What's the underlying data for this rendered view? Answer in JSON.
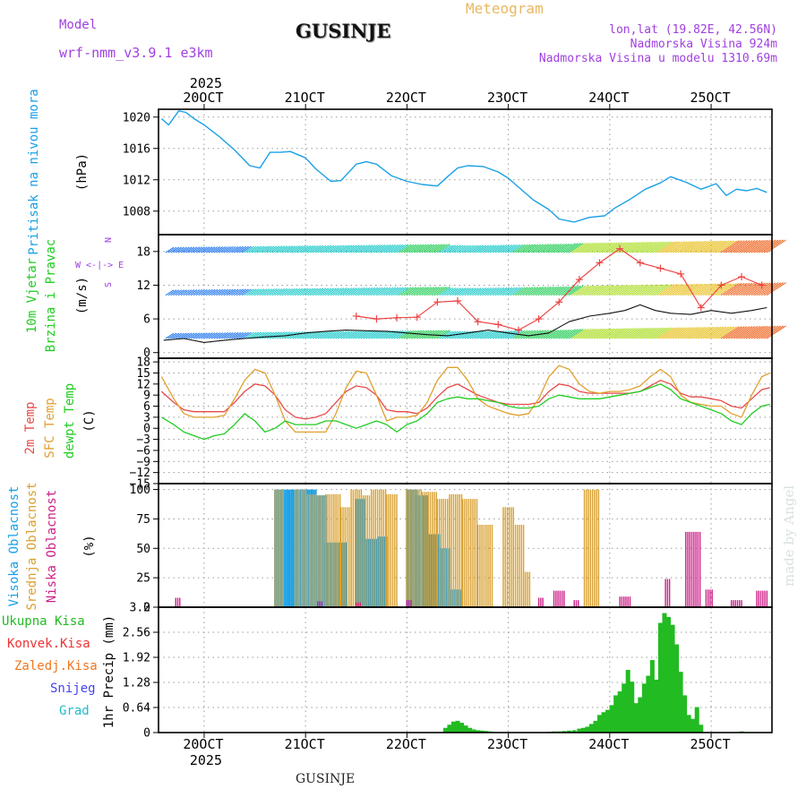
{
  "header": {
    "model_label": "Model",
    "model_name": "wrf-nmm_v3.9.1 e3km",
    "title": "GUSINJE",
    "product": "Meteogram",
    "coords": "lon,lat (19.82E, 42.56N)",
    "elevation": "Nadmorska Visina 924m",
    "model_elevation": "Nadmorska Visina u modelu 1310.69m"
  },
  "footer": {
    "station": "GUSINJE",
    "credit": "made by Angel"
  },
  "colors": {
    "pressure": "#1aa0e6",
    "temp2m": "#e84a4a",
    "sfc": "#e0a030",
    "dewpt": "#22cc22",
    "gust": "#ee4444",
    "precip": "#22bb22",
    "conv": "#ee3333",
    "frozen": "#ee7722",
    "snow": "#4444ee",
    "hail": "#22bbcc",
    "purple": "#a040e0",
    "high": "#1aa0e6",
    "mid": "#d8a030",
    "low": "#cc2288"
  },
  "chart_data": [
    {
      "id": "pressure",
      "type": "line",
      "ylabel": "(hPa)",
      "ylabel2": "Pritisak na nivou mora",
      "ylim": [
        1005,
        1021
      ],
      "yticks": [
        1008,
        1012,
        1016,
        1020
      ],
      "x_days": [
        19.58,
        19.65,
        19.75,
        19.82,
        19.9,
        20.0,
        20.15,
        20.3,
        20.45,
        20.55,
        20.65,
        20.75,
        20.85,
        21.0,
        21.1,
        21.25,
        21.35,
        21.5,
        21.6,
        21.7,
        21.85,
        22.0,
        22.15,
        22.3,
        22.4,
        22.5,
        22.6,
        22.75,
        22.9,
        23.0,
        23.15,
        23.25,
        23.4,
        23.5,
        23.65,
        23.8,
        23.95,
        24.05,
        24.2,
        24.35,
        24.5,
        24.6,
        24.75,
        24.9,
        25.05,
        25.15,
        25.25,
        25.35,
        25.45,
        25.55
      ],
      "values": [
        1019.8,
        1019,
        1020.8,
        1020.6,
        1019.8,
        1019,
        1017.5,
        1015.8,
        1013.8,
        1013.5,
        1015.5,
        1015.5,
        1015.6,
        1014.8,
        1013.4,
        1011.8,
        1011.9,
        1014.0,
        1014.3,
        1014.0,
        1012.5,
        1011.8,
        1011.4,
        1011.2,
        1012.4,
        1013.5,
        1013.8,
        1013.7,
        1013.0,
        1012.2,
        1010.5,
        1009.4,
        1008.2,
        1007.0,
        1006.6,
        1007.2,
        1007.4,
        1008.4,
        1009.5,
        1010.8,
        1011.6,
        1012.4,
        1011.7,
        1010.8,
        1011.5,
        1010.0,
        1010.8,
        1010.6,
        1010.9,
        1010.4
      ]
    },
    {
      "id": "wind",
      "type": "line",
      "ylabel": "(m/s)",
      "ylabel2": "10m Vjetar",
      "ylabel3": "Brzina i Pravac",
      "compass": "W <-|-> E",
      "compass_n": "N",
      "compass_s": "S",
      "ylim": [
        -1,
        21
      ],
      "yticks": [
        0,
        6,
        12,
        18
      ],
      "series": [
        {
          "name": "wind speed",
          "x_days": [
            19.6,
            19.8,
            20.0,
            20.2,
            20.4,
            20.6,
            20.8,
            21.0,
            21.2,
            21.4,
            21.6,
            21.8,
            22.0,
            22.2,
            22.4,
            22.6,
            22.8,
            23.0,
            23.2,
            23.4,
            23.6,
            23.8,
            24.0,
            24.15,
            24.3,
            24.45,
            24.6,
            24.8,
            25.0,
            25.2,
            25.4,
            25.55
          ],
          "values": [
            2.2,
            2.5,
            1.8,
            2.2,
            2.5,
            2.8,
            3.0,
            3.5,
            3.8,
            4.0,
            3.9,
            3.8,
            3.5,
            3.2,
            3.0,
            3.5,
            4.0,
            3.5,
            3.0,
            3.5,
            5.5,
            6.5,
            7.0,
            7.5,
            8.5,
            7.5,
            7.0,
            6.8,
            7.5,
            7.0,
            7.5,
            8.0
          ]
        },
        {
          "name": "gust",
          "x_days": [
            21.5,
            21.7,
            21.9,
            22.1,
            22.3,
            22.5,
            22.7,
            22.9,
            23.1,
            23.3,
            23.5,
            23.7,
            23.9,
            24.1,
            24.3,
            24.5,
            24.7,
            24.9,
            25.1,
            25.3,
            25.5
          ],
          "values": [
            6.5,
            6.0,
            6.2,
            6.3,
            9.0,
            9.2,
            5.5,
            5.0,
            4.0,
            6.0,
            9.0,
            13.0,
            16.0,
            18.5,
            16.0,
            15.0,
            14.0,
            8.0,
            12.0,
            13.5,
            12.0
          ]
        }
      ]
    },
    {
      "id": "temperature",
      "type": "line",
      "ylabel": "(C)",
      "ylabel_a": "2m Temp",
      "ylabel_b": "SFC Temp",
      "ylabel_c": "dewpt Temp",
      "ylim": [
        -15,
        19
      ],
      "yticks": [
        -15,
        -12,
        -9,
        -6,
        -3,
        0,
        3,
        6,
        9,
        12,
        15,
        18
      ],
      "x_days": [
        19.58,
        19.7,
        19.8,
        19.9,
        20.0,
        20.1,
        20.2,
        20.3,
        20.4,
        20.5,
        20.6,
        20.7,
        20.8,
        20.9,
        21.0,
        21.1,
        21.2,
        21.3,
        21.4,
        21.5,
        21.6,
        21.7,
        21.8,
        21.9,
        22.0,
        22.1,
        22.2,
        22.3,
        22.4,
        22.5,
        22.6,
        22.7,
        22.8,
        22.9,
        23.0,
        23.1,
        23.2,
        23.3,
        23.4,
        23.5,
        23.6,
        23.7,
        23.8,
        23.9,
        24.0,
        24.1,
        24.2,
        24.3,
        24.4,
        24.5,
        24.6,
        24.7,
        24.8,
        24.9,
        25.0,
        25.1,
        25.2,
        25.3,
        25.4,
        25.5,
        25.58
      ],
      "series": [
        {
          "name": "2m Temp",
          "values": [
            10,
            7,
            5,
            4.5,
            4.5,
            4.5,
            4.5,
            7,
            10,
            12,
            11.5,
            9,
            5,
            3,
            2.5,
            3,
            4,
            7,
            10,
            11.5,
            11,
            9,
            5,
            4.5,
            4.5,
            4,
            5.5,
            8.5,
            11,
            12,
            10.5,
            9,
            8,
            7,
            6.5,
            6.5,
            6.5,
            7,
            10,
            12,
            11.5,
            10,
            9.5,
            9.5,
            9.5,
            9.5,
            9.5,
            10,
            11.5,
            13,
            12,
            9.5,
            8.5,
            8.5,
            8,
            7.5,
            6,
            5.5,
            8,
            10.5,
            11
          ]
        },
        {
          "name": "SFC Temp",
          "values": [
            14,
            8,
            4,
            3,
            3,
            3,
            3.5,
            8,
            13,
            16,
            15,
            9,
            2,
            -1,
            -1,
            -1,
            -1,
            4,
            11,
            15.5,
            15,
            9,
            2,
            3,
            3,
            3.5,
            7,
            13,
            16.5,
            16.5,
            13,
            8,
            6,
            5,
            4,
            3.5,
            4,
            8,
            14,
            17,
            16,
            12,
            10,
            9.5,
            10,
            10,
            10.5,
            11.5,
            14,
            16,
            14,
            9,
            7,
            6.5,
            6,
            6,
            4,
            3,
            9,
            14,
            15
          ]
        },
        {
          "name": "dewpt Temp",
          "values": [
            3,
            1,
            -1,
            -2,
            -3,
            -2,
            -1.5,
            1,
            4,
            2,
            -1,
            0,
            2,
            1,
            1,
            1,
            2,
            2,
            1,
            0,
            1,
            2,
            1,
            -1,
            1,
            2,
            4,
            7,
            8,
            8.5,
            8,
            8,
            7.5,
            7,
            6,
            5.5,
            5.5,
            6,
            8,
            9,
            8.5,
            8,
            8,
            8,
            8.5,
            9,
            9.5,
            10,
            11,
            12,
            10.5,
            8,
            7,
            6,
            5,
            4,
            2,
            1,
            4,
            6,
            6.5
          ]
        }
      ]
    },
    {
      "id": "cloud",
      "type": "bar",
      "ylabel": "(%)",
      "ylabel_a": "Visoka Oblacnost",
      "ylabel_b": "Srednja Oblacnost",
      "ylabel_c": "Niska Oblacnost",
      "ylim": [
        0,
        105
      ],
      "yticks": [
        0,
        25,
        50,
        75,
        100
      ],
      "series": [
        {
          "name": "Visoka Oblacnost",
          "segments": [
            [
              20.7,
              21.1,
              100
            ],
            [
              21.1,
              21.2,
              95
            ],
            [
              21.2,
              21.4,
              55
            ],
            [
              21.5,
              21.58,
              92
            ],
            [
              21.6,
              21.7,
              58
            ],
            [
              21.72,
              21.8,
              60
            ],
            [
              22.0,
              22.1,
              100
            ],
            [
              22.1,
              22.2,
              95
            ],
            [
              22.22,
              22.32,
              62
            ],
            [
              22.32,
              22.42,
              50
            ],
            [
              22.42,
              22.55,
              15
            ]
          ]
        },
        {
          "name": "Srednja Oblacnost",
          "segments": [
            [
              20.7,
              20.78,
              100
            ],
            [
              20.9,
              21.0,
              100
            ],
            [
              21.0,
              21.1,
              96
            ],
            [
              21.1,
              21.2,
              95
            ],
            [
              21.2,
              21.35,
              96
            ],
            [
              21.35,
              21.45,
              85
            ],
            [
              21.45,
              21.55,
              100
            ],
            [
              21.55,
              21.65,
              95
            ],
            [
              21.65,
              21.8,
              100
            ],
            [
              21.8,
              21.9,
              96
            ],
            [
              22.0,
              22.15,
              100
            ],
            [
              22.15,
              22.3,
              98
            ],
            [
              22.3,
              22.42,
              92
            ],
            [
              22.42,
              22.55,
              96
            ],
            [
              22.55,
              22.7,
              92
            ],
            [
              22.7,
              22.85,
              70
            ],
            [
              22.95,
              23.05,
              85
            ],
            [
              23.05,
              23.15,
              70
            ],
            [
              23.15,
              23.22,
              30
            ],
            [
              23.75,
              23.9,
              100
            ]
          ]
        },
        {
          "name": "Niska Oblacnost",
          "segments": [
            [
              19.72,
              19.77,
              8
            ],
            [
              21.12,
              21.16,
              5
            ],
            [
              21.5,
              21.54,
              4
            ],
            [
              22.0,
              22.05,
              6
            ],
            [
              23.3,
              23.35,
              8
            ],
            [
              23.45,
              23.55,
              14
            ],
            [
              23.65,
              23.7,
              6
            ],
            [
              24.1,
              24.2,
              9
            ],
            [
              24.55,
              24.6,
              24
            ],
            [
              24.75,
              24.9,
              64
            ],
            [
              24.95,
              25.02,
              15
            ],
            [
              25.2,
              25.3,
              6
            ],
            [
              25.45,
              25.55,
              14
            ]
          ]
        }
      ]
    },
    {
      "id": "precip",
      "type": "bar",
      "ylabel": "1hr Precip (mm)",
      "legend": [
        "Ukupna Kisa",
        "Konvek.Kisa",
        "Zaledj.Kisa",
        "Snijeg",
        "Grad"
      ],
      "ylim": [
        0,
        3.2
      ],
      "yticks": [
        0,
        0.64,
        1.28,
        1.92,
        2.56,
        3.2
      ],
      "ytick_labels": [
        "0",
        "0.64",
        "1.28",
        "1.92",
        "2.56",
        "3.2"
      ],
      "x_days": [
        22.38,
        22.42,
        22.46,
        22.5,
        22.54,
        22.58,
        22.62,
        22.66,
        22.7,
        22.74,
        22.78,
        22.82,
        23.4,
        23.45,
        23.5,
        23.55,
        23.6,
        23.65,
        23.7,
        23.74,
        23.78,
        23.82,
        23.86,
        23.9,
        23.94,
        23.98,
        24.02,
        24.06,
        24.1,
        24.14,
        24.18,
        24.22,
        24.26,
        24.3,
        24.34,
        24.38,
        24.42,
        24.46,
        24.5,
        24.54,
        24.58,
        24.62,
        24.66,
        24.7,
        24.74,
        24.78,
        24.82,
        24.86,
        24.9,
        25.3
      ],
      "values": [
        0.12,
        0.2,
        0.28,
        0.3,
        0.25,
        0.18,
        0.12,
        0.08,
        0.06,
        0.05,
        0.04,
        0.03,
        0.02,
        0.03,
        0.03,
        0.04,
        0.05,
        0.06,
        0.1,
        0.12,
        0.15,
        0.22,
        0.3,
        0.45,
        0.52,
        0.58,
        0.7,
        0.95,
        1.05,
        1.25,
        1.6,
        1.3,
        0.75,
        0.9,
        1.25,
        1.45,
        1.85,
        1.35,
        2.8,
        3.05,
        2.95,
        2.75,
        2.25,
        1.55,
        0.95,
        0.45,
        0.35,
        0.65,
        0.2,
        0.03
      ]
    },
    {
      "id": "time_axis",
      "type": "axis",
      "year": "2025",
      "days": [
        20,
        21,
        22,
        23,
        24,
        25
      ],
      "labels": [
        "20OCT",
        "21OCT",
        "22OCT",
        "23OCT",
        "24OCT",
        "25OCT"
      ],
      "xlim": [
        19.55,
        25.6
      ]
    }
  ]
}
